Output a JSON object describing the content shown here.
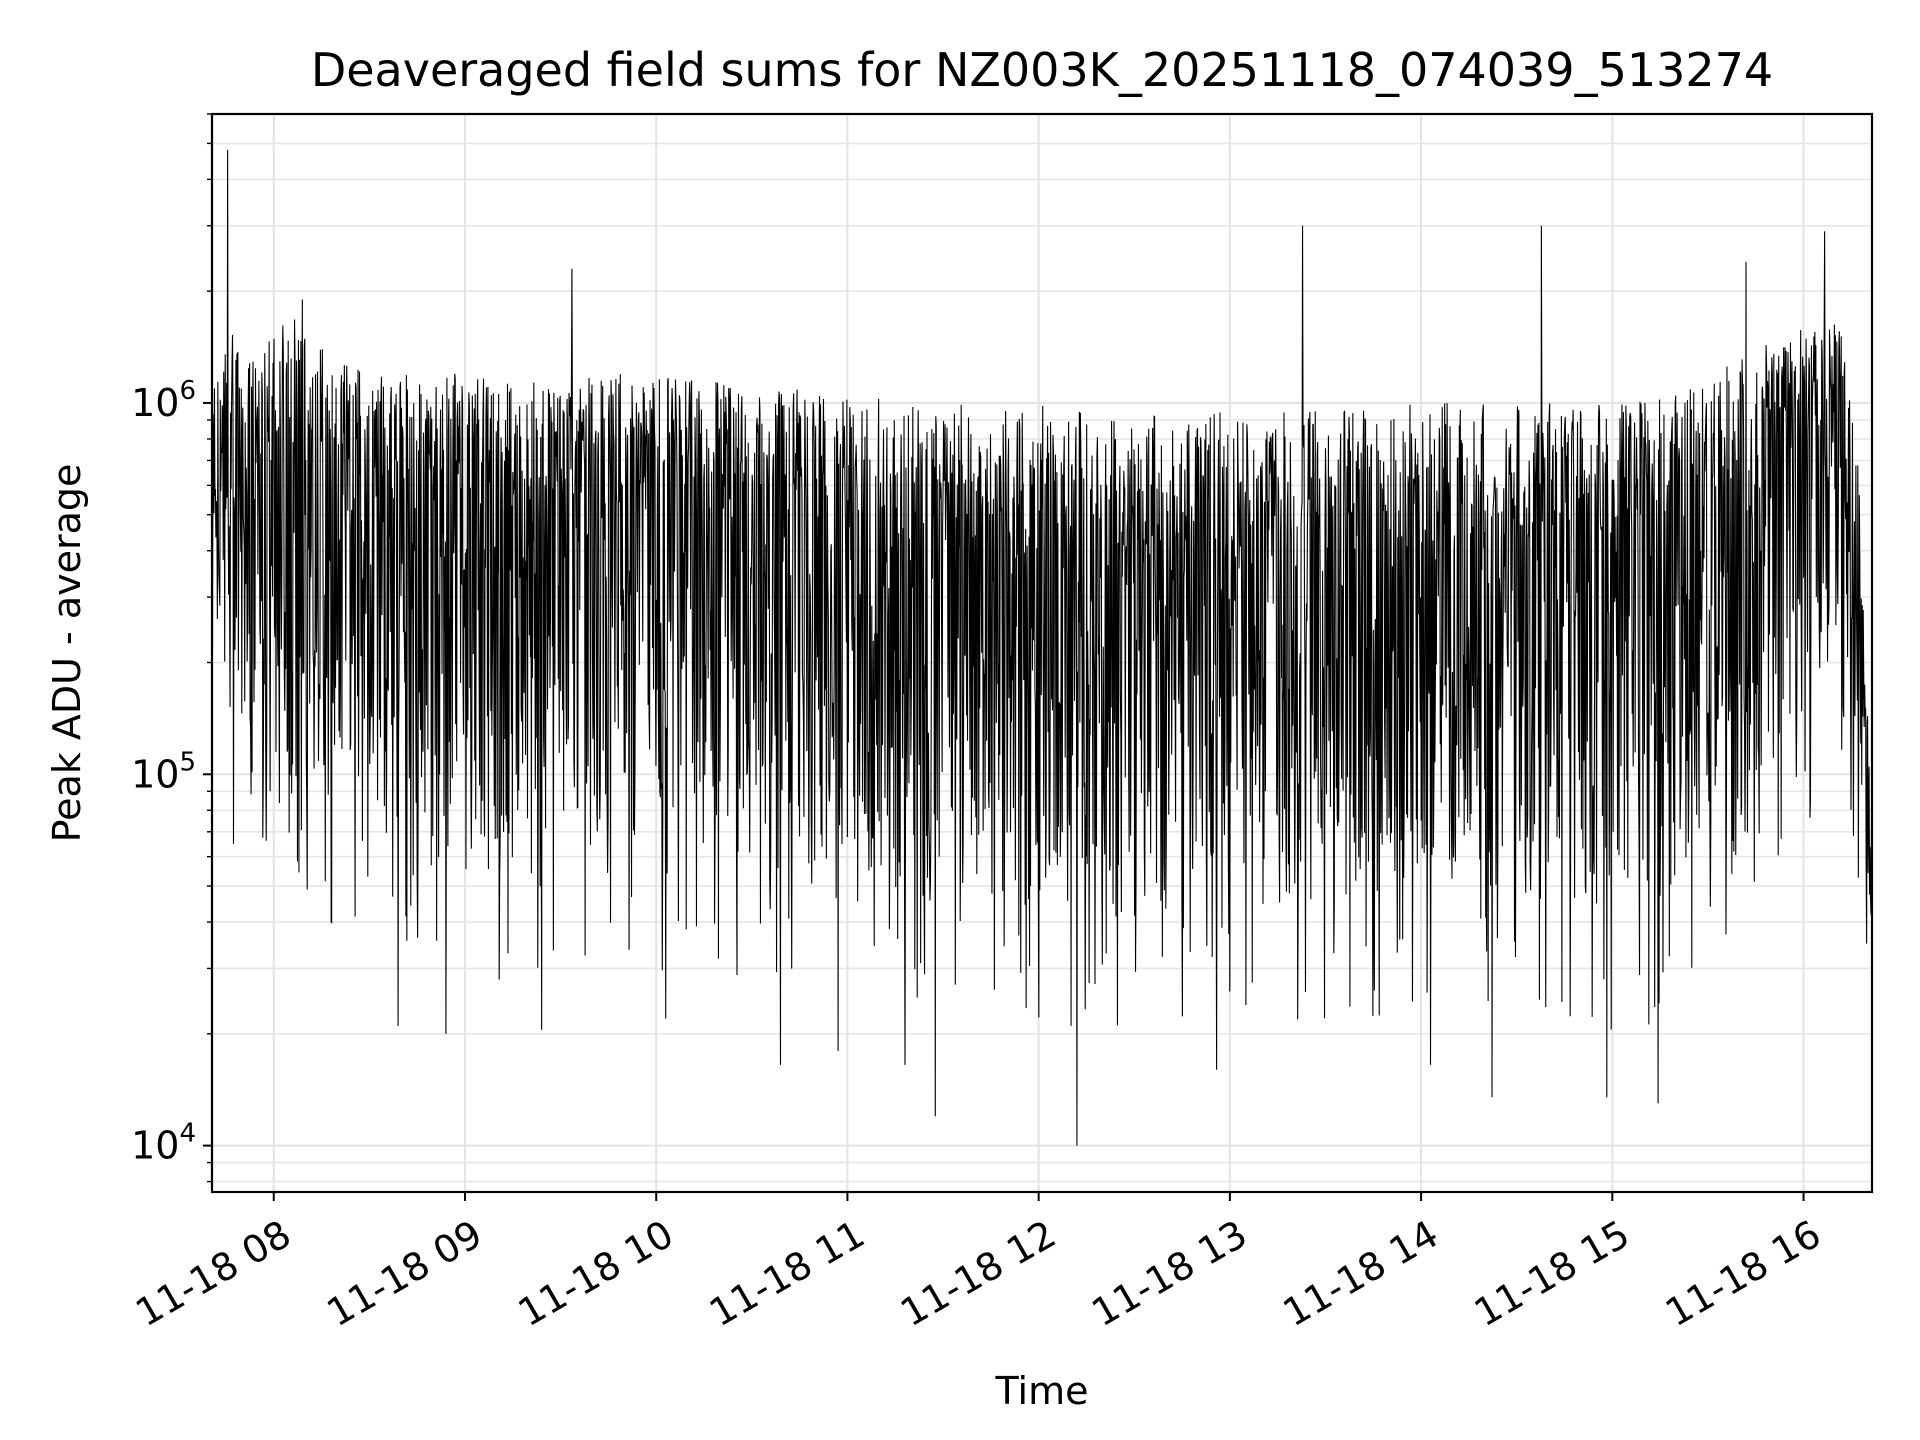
{
  "chart_data": {
    "type": "line",
    "title": "Deaveraged field sums for NZ003K_20251118_074039_513274",
    "xlabel": "Time",
    "ylabel": "Peak ADU - average",
    "yscale": "log",
    "ylim": [
      7500,
      6000000
    ],
    "xlim_hours": [
      7.677,
      16.358
    ],
    "grid": true,
    "line_color": "#000000",
    "x_ticks": [
      {
        "hour": 8,
        "label": "11-18 08"
      },
      {
        "hour": 9,
        "label": "11-18 09"
      },
      {
        "hour": 10,
        "label": "11-18 10"
      },
      {
        "hour": 11,
        "label": "11-18 11"
      },
      {
        "hour": 12,
        "label": "11-18 12"
      },
      {
        "hour": 13,
        "label": "11-18 13"
      },
      {
        "hour": 14,
        "label": "11-18 14"
      },
      {
        "hour": 15,
        "label": "11-18 15"
      },
      {
        "hour": 16,
        "label": "11-18 16"
      }
    ],
    "y_ticks": [
      {
        "value": 10000,
        "base": "10",
        "exp": "4"
      },
      {
        "value": 100000,
        "base": "10",
        "exp": "5"
      },
      {
        "value": 1000000,
        "base": "10",
        "exp": "6"
      }
    ],
    "series": [
      {
        "name": "Peak ADU - average",
        "envelope_hours": [
          7.68,
          7.75,
          7.82,
          7.9,
          8.0,
          8.1,
          8.2,
          8.4,
          8.6,
          8.8,
          9.0,
          9.3,
          9.6,
          10.0,
          10.5,
          11.0,
          11.5,
          12.0,
          12.5,
          13.0,
          13.5,
          14.0,
          14.5,
          15.0,
          15.3,
          15.6,
          15.8,
          16.0,
          16.1,
          16.2,
          16.28,
          16.35
        ],
        "envelope_median": [
          600000,
          900000,
          750000,
          700000,
          800000,
          850000,
          750000,
          650000,
          600000,
          600000,
          580000,
          560000,
          600000,
          580000,
          550000,
          520000,
          470000,
          430000,
          420000,
          420000,
          420000,
          430000,
          450000,
          450000,
          480000,
          600000,
          750000,
          850000,
          900000,
          850000,
          300000,
          60000
        ],
        "envelope_upper": [
          1200000,
          1700000,
          1400000,
          1300000,
          1600000,
          1700000,
          1500000,
          1300000,
          1200000,
          1200000,
          1200000,
          1150000,
          1200000,
          1200000,
          1100000,
          1100000,
          1000000,
          1000000,
          950000,
          950000,
          950000,
          1000000,
          1000000,
          1000000,
          1050000,
          1300000,
          1500000,
          1600000,
          1700000,
          1600000,
          900000,
          90000
        ],
        "envelope_lower_typical": [
          200000,
          300000,
          150000,
          120000,
          110000,
          100000,
          90000,
          80000,
          75000,
          70000,
          68000,
          65000,
          70000,
          65000,
          60000,
          55000,
          50000,
          45000,
          45000,
          45000,
          45000,
          50000,
          48000,
          45000,
          45000,
          60000,
          100000,
          150000,
          200000,
          250000,
          120000,
          40000
        ],
        "spikes": [
          {
            "hour": 7.76,
            "value": 4800000
          },
          {
            "hour": 7.79,
            "value": 65000
          },
          {
            "hour": 7.98,
            "value": 90000
          },
          {
            "hour": 8.15,
            "value": 1900000
          },
          {
            "hour": 8.3,
            "value": 40000
          },
          {
            "hour": 8.65,
            "value": 21000
          },
          {
            "hour": 8.9,
            "value": 20000
          },
          {
            "hour": 9.18,
            "value": 28000
          },
          {
            "hour": 9.4,
            "value": 20500
          },
          {
            "hour": 9.56,
            "value": 2300000
          },
          {
            "hour": 10.05,
            "value": 22000
          },
          {
            "hour": 10.65,
            "value": 16500
          },
          {
            "hour": 10.95,
            "value": 18000
          },
          {
            "hour": 11.3,
            "value": 16500
          },
          {
            "hour": 11.46,
            "value": 12000
          },
          {
            "hour": 12.2,
            "value": 10000
          },
          {
            "hour": 12.93,
            "value": 16000
          },
          {
            "hour": 13.38,
            "value": 3000000
          },
          {
            "hour": 14.05,
            "value": 16500
          },
          {
            "hour": 14.37,
            "value": 13500
          },
          {
            "hour": 14.63,
            "value": 3000000
          },
          {
            "hour": 14.97,
            "value": 13500
          },
          {
            "hour": 15.24,
            "value": 13000
          },
          {
            "hour": 15.7,
            "value": 2400000
          },
          {
            "hour": 16.11,
            "value": 2900000
          },
          {
            "hour": 16.33,
            "value": 35000
          }
        ]
      }
    ]
  }
}
